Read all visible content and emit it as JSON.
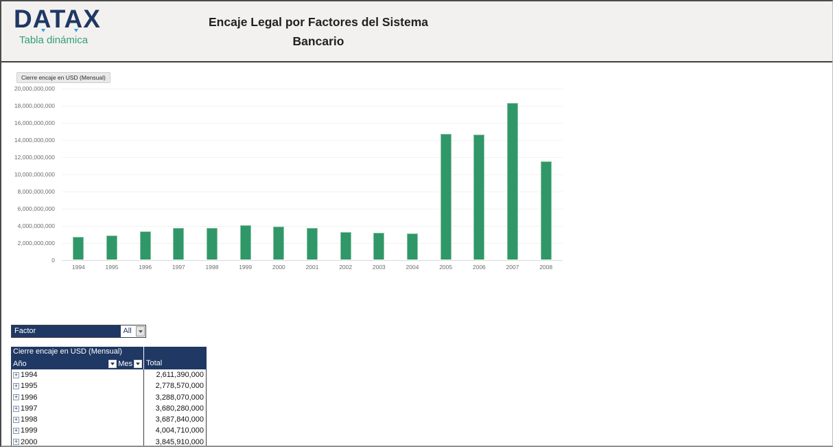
{
  "header": {
    "logo_text": "DATAX",
    "logo_subtitle": "Tabla dinámica",
    "title_line1": "Encaje Legal por Factores del Sistema",
    "title_line2": "Bancario"
  },
  "chart": {
    "field_button": "Cierre encaje en USD (Mensual)"
  },
  "chart_data": {
    "type": "bar",
    "title": "Cierre encaje en USD (Mensual)",
    "categories": [
      "1994",
      "1995",
      "1996",
      "1997",
      "1998",
      "1999",
      "2000",
      "2001",
      "2002",
      "2003",
      "2004",
      "2005",
      "2006",
      "2007",
      "2008"
    ],
    "values": [
      2611390000,
      2778570000,
      3288070000,
      3680280000,
      3687840000,
      4004710000,
      3845910000,
      3650000000,
      3230000000,
      3130000000,
      3050000000,
      14650000000,
      14550000000,
      18250000000,
      11450000000
    ],
    "xlabel": "",
    "ylabel": "",
    "ylim": [
      0,
      20000000000
    ],
    "ytick_labels": [
      "20,000,000,000",
      "18,000,000,000",
      "16,000,000,000",
      "14,000,000,000",
      "12,000,000,000",
      "10,000,000,000",
      "8,000,000,000",
      "6,000,000,000",
      "4,000,000,000",
      "2,000,000,000",
      "0"
    ],
    "grid": true,
    "legend_position": "none",
    "bar_color": "#2f9768"
  },
  "filter": {
    "label": "Factor",
    "value": "All"
  },
  "pivot": {
    "header_title": "Cierre encaje en USD (Mensual)",
    "col_year": "Año",
    "col_month": "Mes",
    "col_total": "Total",
    "rows": [
      {
        "year": "1994",
        "total": "2,611,390,000"
      },
      {
        "year": "1995",
        "total": "2,778,570,000"
      },
      {
        "year": "1996",
        "total": "3,288,070,000"
      },
      {
        "year": "1997",
        "total": "3,680,280,000"
      },
      {
        "year": "1998",
        "total": "3,687,840,000"
      },
      {
        "year": "1999",
        "total": "4,004,710,000"
      },
      {
        "year": "2000",
        "total": "3,845,910,000"
      }
    ]
  },
  "icons": {
    "expand_plus": "+",
    "dropdown": "▼"
  },
  "colors": {
    "navy": "#1f3864",
    "green_text": "#2f9e78",
    "bar_green": "#2f9768",
    "header_bg": "#f3f1ef"
  }
}
